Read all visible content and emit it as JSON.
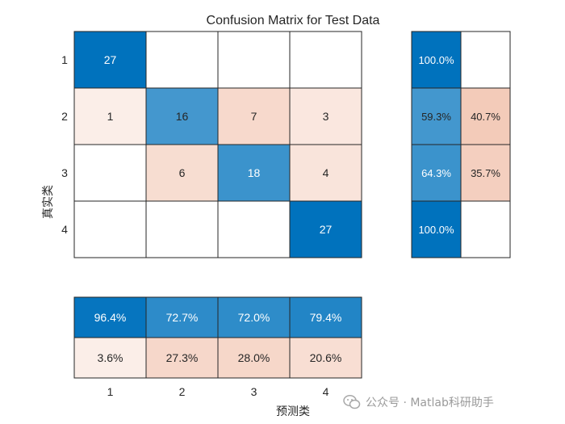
{
  "chart_data": {
    "type": "heatmap",
    "title": "Confusion Matrix for Test Data",
    "xlabel": "预测类",
    "ylabel": "真实类",
    "classes": [
      "1",
      "2",
      "3",
      "4"
    ],
    "matrix": [
      [
        27,
        0,
        0,
        0
      ],
      [
        1,
        16,
        7,
        3
      ],
      [
        0,
        6,
        18,
        4
      ],
      [
        0,
        0,
        0,
        27
      ]
    ],
    "row_summary": {
      "correct": [
        "100.0%",
        "59.3%",
        "64.3%",
        "100.0%"
      ],
      "incorrect": [
        "",
        "40.7%",
        "35.7%",
        ""
      ]
    },
    "column_summary": {
      "correct": [
        "96.4%",
        "72.7%",
        "72.0%",
        "79.4%"
      ],
      "incorrect": [
        "3.6%",
        "27.3%",
        "28.0%",
        "20.6%"
      ]
    },
    "colors": {
      "correct_max": "#0072bd",
      "incorrect_max": "#d95319",
      "background": "#ffffff",
      "border": "#262626"
    }
  },
  "watermark": {
    "text": "公众号 · Matlab科研助手",
    "icon": "wechat-icon"
  }
}
